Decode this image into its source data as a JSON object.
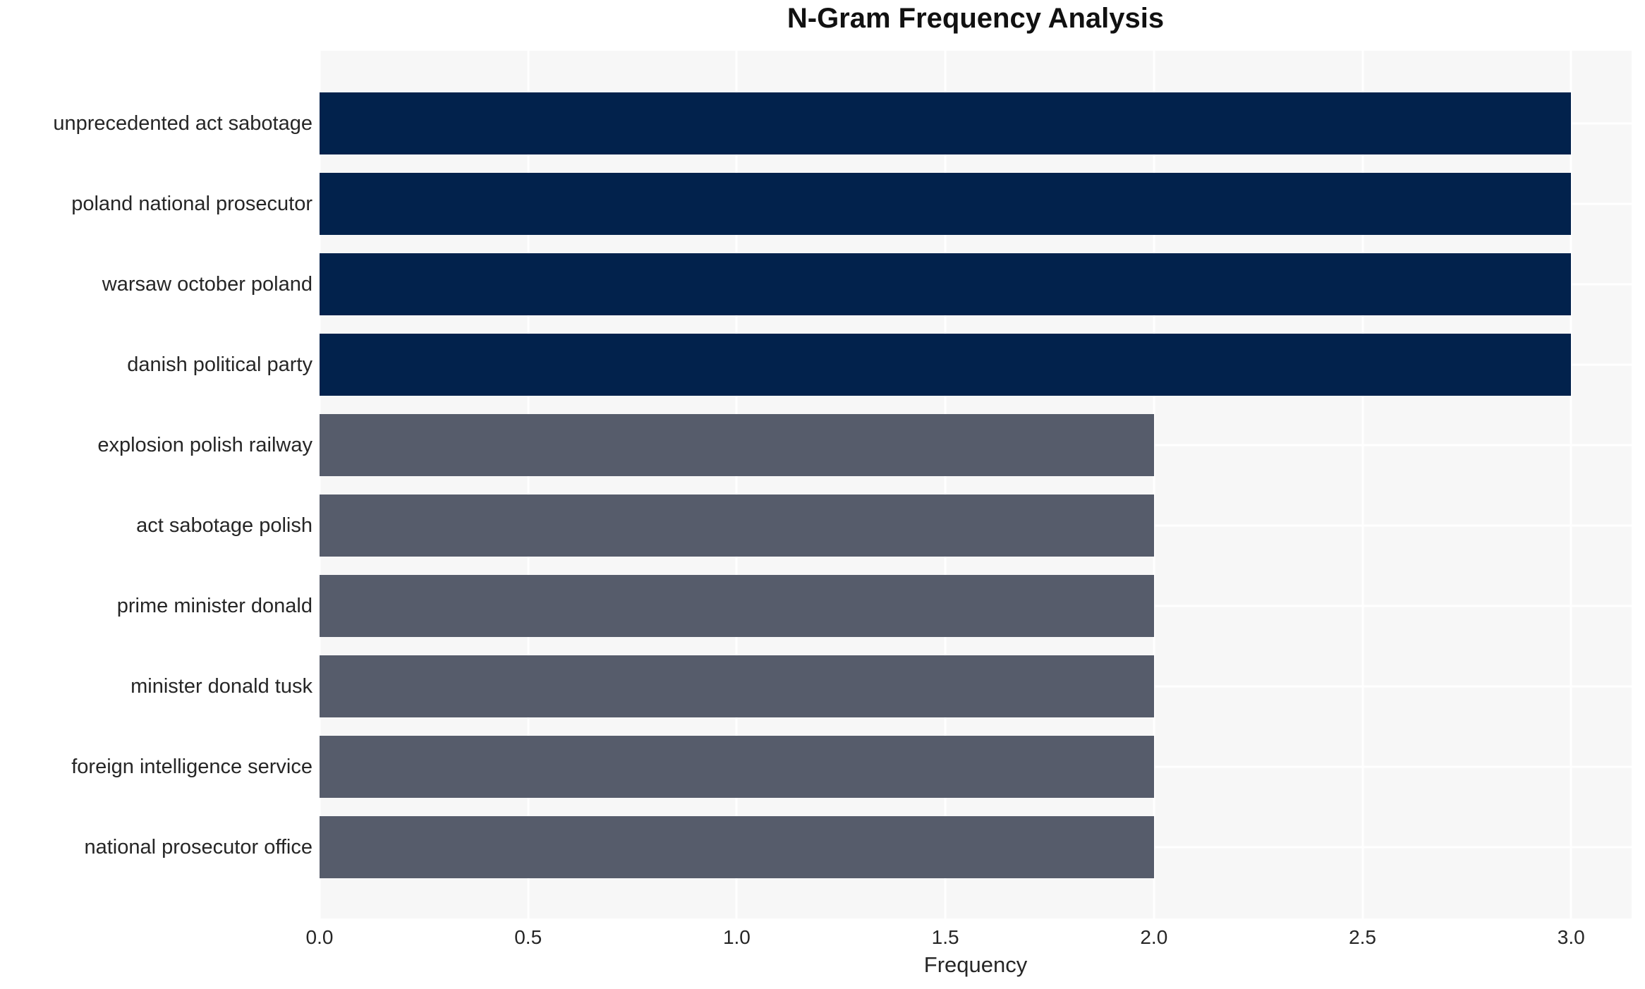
{
  "chart_data": {
    "type": "bar",
    "orientation": "horizontal",
    "title": "N-Gram Frequency Analysis",
    "xlabel": "Frequency",
    "ylabel": "",
    "categories": [
      "unprecedented act sabotage",
      "poland national prosecutor",
      "warsaw october poland",
      "danish political party",
      "explosion polish railway",
      "act sabotage polish",
      "prime minister donald",
      "minister donald tusk",
      "foreign intelligence service",
      "national prosecutor office"
    ],
    "values": [
      3,
      3,
      3,
      3,
      2,
      2,
      2,
      2,
      2,
      2
    ],
    "bar_colors": [
      "#02224c",
      "#02224c",
      "#02224c",
      "#02224c",
      "#565c6b",
      "#565c6b",
      "#565c6b",
      "#565c6b",
      "#565c6b",
      "#565c6b"
    ],
    "xticks": [
      0.0,
      0.5,
      1.0,
      1.5,
      2.0,
      2.5,
      3.0
    ],
    "xtick_labels": [
      "0.0",
      "0.5",
      "1.0",
      "1.5",
      "2.0",
      "2.5",
      "3.0"
    ],
    "xlim": [
      0,
      3.145
    ],
    "grid": true,
    "grid_color": "#ffffff",
    "plot_background": "#f7f7f7",
    "figure_background": "#ffffff",
    "text_color": "#262626",
    "legend": false
  }
}
